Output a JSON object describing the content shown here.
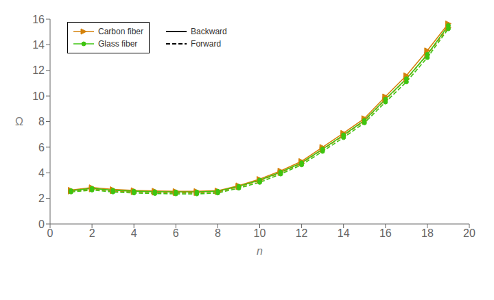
{
  "chart_data": {
    "type": "line",
    "xlabel": "n",
    "ylabel": "Ω",
    "x": [
      1,
      2,
      3,
      4,
      5,
      6,
      7,
      8,
      9,
      10,
      11,
      12,
      13,
      14,
      15,
      16,
      17,
      18,
      19
    ],
    "series": [
      {
        "name": "Carbon fiber",
        "color": "#D4820A",
        "marker": "triangle-right",
        "line_style": "solid",
        "values": [
          2.65,
          2.85,
          2.7,
          2.62,
          2.58,
          2.55,
          2.55,
          2.6,
          3.0,
          3.5,
          4.15,
          4.9,
          6.0,
          7.1,
          8.25,
          9.95,
          11.6,
          13.55,
          15.65
        ]
      },
      {
        "name": "Carbon fiber",
        "color": "#D4820A",
        "marker": "triangle-right",
        "line_style": "dashed",
        "values": [
          2.55,
          2.72,
          2.58,
          2.5,
          2.46,
          2.43,
          2.43,
          2.5,
          2.9,
          3.38,
          4.0,
          4.75,
          5.82,
          6.9,
          8.05,
          9.72,
          11.32,
          13.22,
          15.35
        ]
      },
      {
        "name": "Glass fiber",
        "color": "#3EC410",
        "marker": "circle",
        "line_style": "solid",
        "values": [
          2.6,
          2.78,
          2.63,
          2.56,
          2.52,
          2.5,
          2.5,
          2.56,
          2.94,
          3.42,
          4.05,
          4.78,
          5.85,
          6.95,
          8.1,
          9.75,
          11.35,
          13.25,
          15.5
        ]
      },
      {
        "name": "Glass fiber",
        "color": "#3EC410",
        "marker": "circle",
        "line_style": "dashed",
        "values": [
          2.5,
          2.65,
          2.5,
          2.42,
          2.38,
          2.35,
          2.35,
          2.42,
          2.8,
          3.25,
          3.9,
          4.62,
          5.67,
          6.75,
          7.9,
          9.52,
          11.1,
          13.0,
          15.25
        ]
      }
    ],
    "line_styles": [
      {
        "name": "Backward",
        "line_style": "solid"
      },
      {
        "name": "Forward",
        "line_style": "dashed"
      }
    ],
    "xlim": [
      0,
      20
    ],
    "ylim": [
      0,
      16
    ],
    "xticks": [
      0,
      2,
      4,
      6,
      8,
      10,
      12,
      14,
      16,
      18,
      20
    ],
    "yticks": [
      0,
      2,
      4,
      6,
      8,
      10,
      12,
      14,
      16
    ],
    "grid": false,
    "legend": "upper left"
  }
}
